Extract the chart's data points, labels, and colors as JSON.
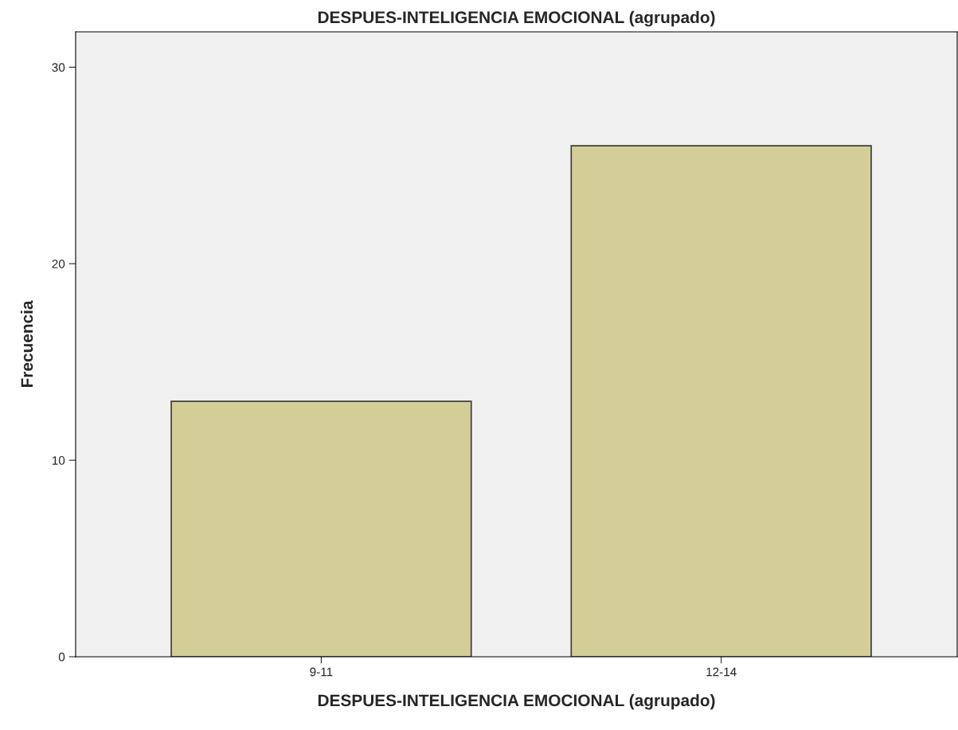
{
  "chart_data": {
    "type": "bar",
    "title": "DESPUES-INTELIGENCIA EMOCIONAL (agrupado)",
    "xlabel": "DESPUES-INTELIGENCIA EMOCIONAL (agrupado)",
    "ylabel": "Frecuencia",
    "categories": [
      "9-11",
      "12-14"
    ],
    "values": [
      13,
      26
    ],
    "color": "#d3ce97",
    "ylim": [
      0,
      31.8
    ],
    "yticks": [
      0,
      10,
      20,
      30
    ],
    "grid": false,
    "legend": false
  }
}
